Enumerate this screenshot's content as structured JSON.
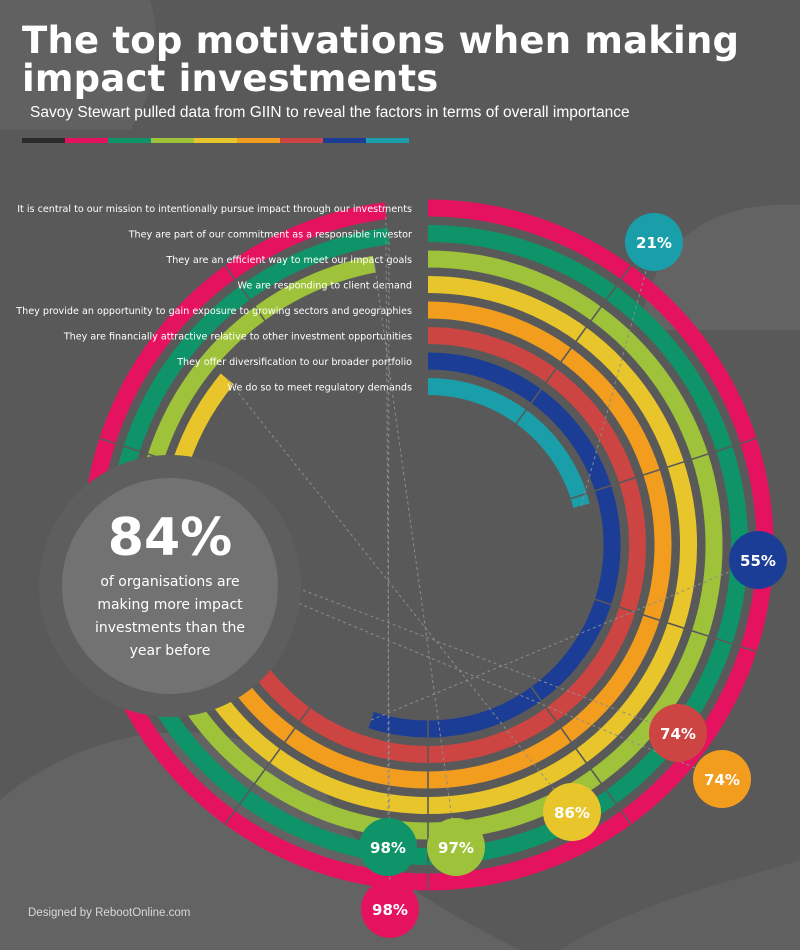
{
  "title": "The top motivations when making impact investments",
  "subtitle": "Savoy Stewart pulled data from GIIN to reveal the factors in terms of overall importance",
  "footer": "Designed by RebootOnline.com",
  "stat": {
    "value": "84%",
    "caption_lines": [
      "of organisations are",
      "making more impact",
      "investments than the",
      "year before"
    ]
  },
  "colors": {
    "background": "#595959",
    "text": "#ffffff",
    "swatches": [
      "#2b2b2b",
      "#e5135f",
      "#0e9468",
      "#9ec33a",
      "#e8c52a",
      "#f39d1f",
      "#cd4542",
      "#1c3d96",
      "#1a9ea9"
    ]
  },
  "chart_data": {
    "type": "radial-bar",
    "title": "The top motivations when making impact investments",
    "unit": "%",
    "categories": [
      "It is central to our mission to intentionally pursue impact through our investments",
      "They are part of our commitment as a responsible investor",
      "They are an efficient way to meet our impact goals",
      "We are responding to client demand",
      "They provide an opportunity to gain exposure to growing sectors and geographies",
      "They are financially attractive relative to other investment opportunities",
      "They offer diversification to our broader portfolio",
      "We do so to meet regulatory demands"
    ],
    "values": [
      98,
      98,
      97,
      86,
      74,
      74,
      55,
      21
    ],
    "value_labels": [
      "98%",
      "98%",
      "97%",
      "86%",
      "74%",
      "74%",
      "55%",
      "21%"
    ],
    "colors": [
      "#e5135f",
      "#0e9468",
      "#9ec33a",
      "#e8c52a",
      "#f39d1f",
      "#cd4542",
      "#1c3d96",
      "#1a9ea9"
    ]
  }
}
